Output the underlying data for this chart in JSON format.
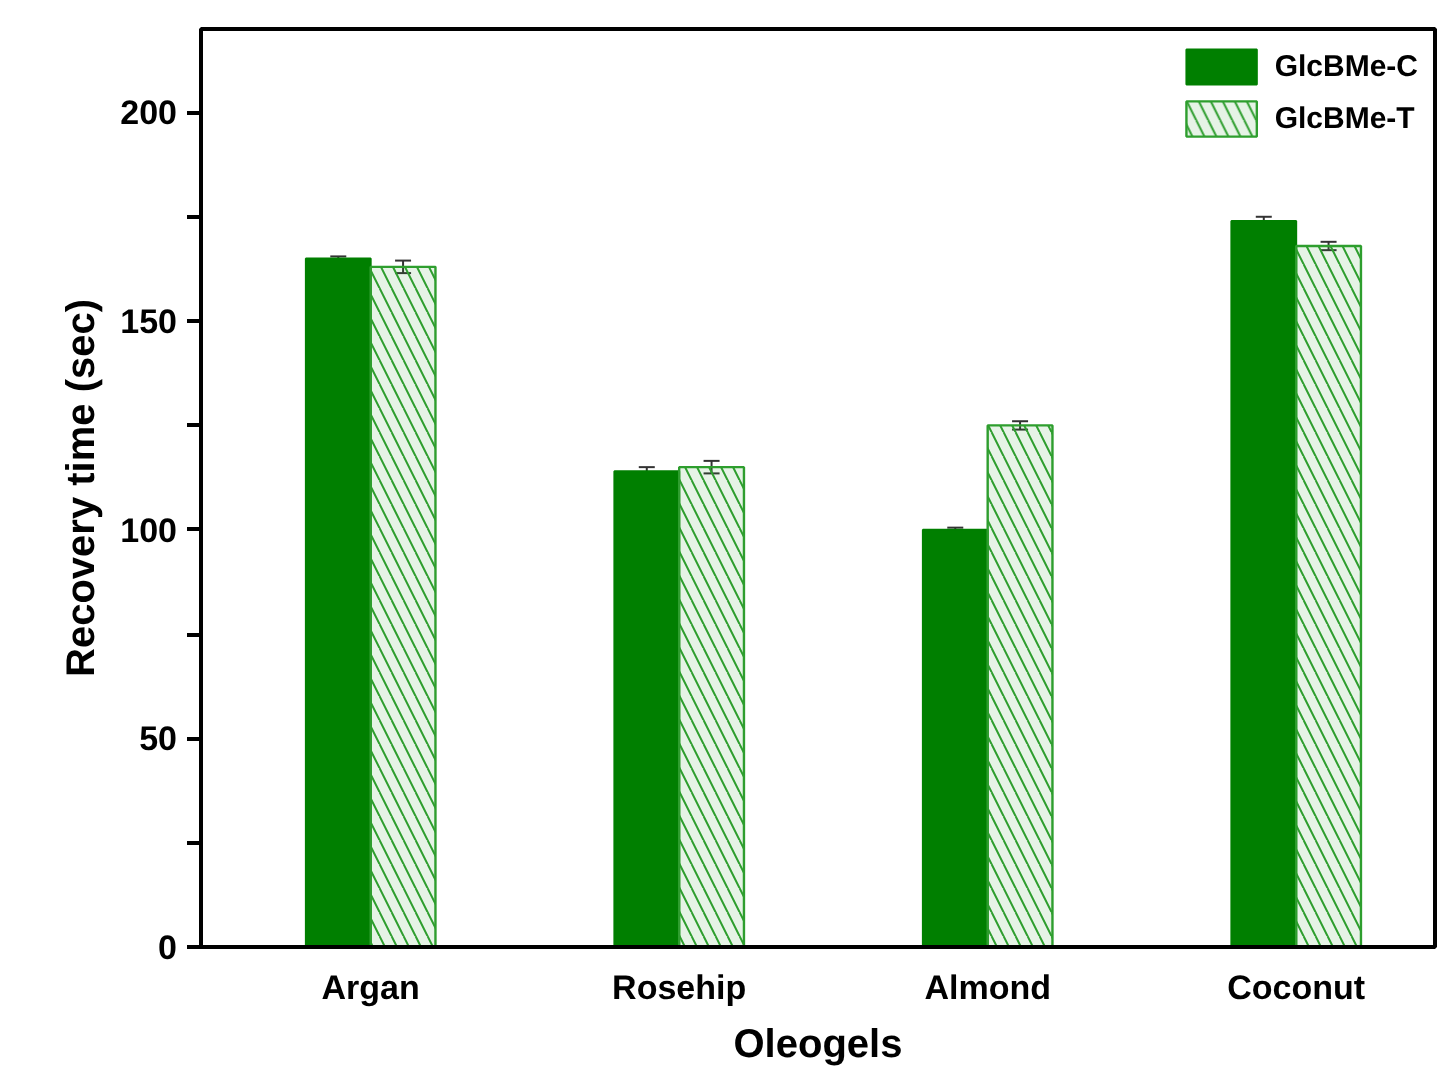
{
  "chart_data": {
    "type": "bar",
    "xlabel": "Oleogels",
    "ylabel": "Recovery time (sec)",
    "categories": [
      "Argan",
      "Rosehip",
      "Almond",
      "Coconut"
    ],
    "series": [
      {
        "name": "GlcBMe-C",
        "color": "#007f00",
        "values": [
          165,
          114,
          100,
          174
        ],
        "errors": [
          0.5,
          1,
          0.5,
          1
        ]
      },
      {
        "name": "GlcBMe-T",
        "color": "#2e9e2e",
        "values": [
          163,
          115,
          125,
          168
        ],
        "errors": [
          1.5,
          1.5,
          1,
          1
        ]
      }
    ],
    "ylim": [
      0,
      220
    ],
    "yticks": [
      0,
      {
        "value": 25,
        "label": null
      },
      50,
      {
        "value": 75,
        "label": null
      },
      100,
      {
        "value": 125,
        "label": null
      },
      150,
      {
        "value": 175,
        "label": null
      },
      200
    ],
    "grid": false,
    "legend": "top right"
  }
}
